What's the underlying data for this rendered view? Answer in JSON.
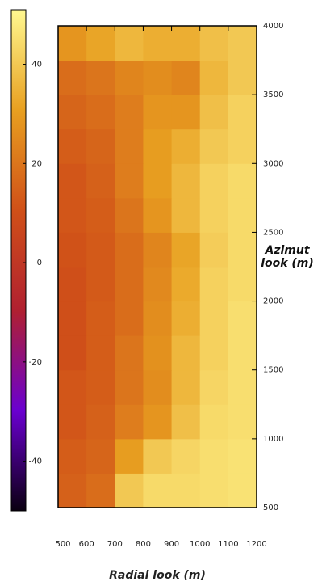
{
  "chart_data": {
    "type": "heatmap",
    "xlabel": "Radial look (m)",
    "ylabel": "Azimut look (m)",
    "xlim": [
      500,
      1200
    ],
    "xticks": [
      500,
      600,
      700,
      800,
      900,
      1000,
      1100,
      1200
    ],
    "ylim": [
      500,
      4000
    ],
    "yticks": [
      500,
      1000,
      1500,
      2000,
      2500,
      3000,
      3500,
      4000
    ],
    "x": [
      550,
      650,
      750,
      850,
      950,
      1050,
      1150
    ],
    "y": [
      625,
      875,
      1125,
      1375,
      1625,
      1875,
      2125,
      2375,
      2625,
      2875,
      3125,
      3375,
      3625,
      3875
    ],
    "z": [
      [
        15,
        18,
        40,
        44,
        44,
        45,
        46
      ],
      [
        14,
        16,
        30,
        40,
        43,
        45,
        46
      ],
      [
        12,
        15,
        22,
        28,
        38,
        44,
        45
      ],
      [
        12,
        14,
        20,
        26,
        36,
        43,
        45
      ],
      [
        10,
        14,
        20,
        27,
        36,
        42,
        45
      ],
      [
        10,
        14,
        18,
        26,
        34,
        42,
        45
      ],
      [
        10,
        13,
        18,
        25,
        33,
        42,
        44
      ],
      [
        11,
        13,
        18,
        24,
        32,
        41,
        44
      ],
      [
        12,
        14,
        20,
        28,
        36,
        42,
        44
      ],
      [
        12,
        15,
        22,
        30,
        36,
        42,
        44
      ],
      [
        14,
        16,
        22,
        30,
        34,
        40,
        42
      ],
      [
        16,
        18,
        22,
        28,
        28,
        38,
        42
      ],
      [
        18,
        20,
        24,
        26,
        24,
        36,
        40
      ],
      [
        28,
        32,
        36,
        34,
        34,
        38,
        40
      ]
    ],
    "clim": [
      -50,
      51
    ],
    "cticks": [
      -40,
      -20,
      0,
      20,
      40
    ],
    "colormap": [
      "#0a0010",
      "#6a00d0",
      "#b02030",
      "#d05018",
      "#e8a020",
      "#fff890"
    ]
  }
}
